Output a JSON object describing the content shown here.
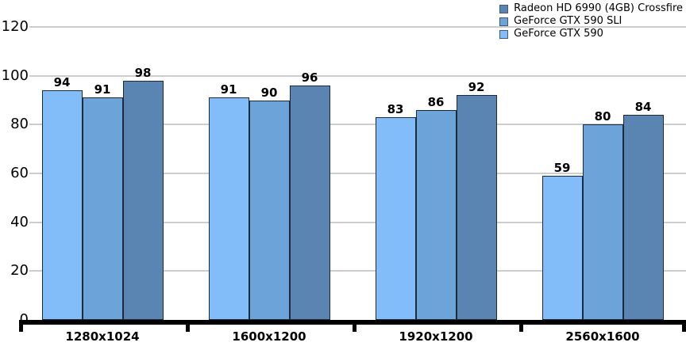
{
  "chart": {
    "legend": {
      "position": "top-right",
      "items": [
        {
          "label": "Radeon HD 6990 (4GB) Crossfire",
          "color": "#5A85B2"
        },
        {
          "label": "GeForce GTX 590 SLI",
          "color": "#6CA3D8"
        },
        {
          "label": "GeForce GTX 590",
          "color": "#83BDF9"
        }
      ]
    },
    "colors": {
      "grid": "#CDCDCD",
      "axis": "#000000",
      "bar_border": "#1C2B3A",
      "text": "#000000",
      "background": "#FFFFFF"
    }
  },
  "chart_data": {
    "type": "bar",
    "title": "",
    "xlabel": "",
    "ylabel": "",
    "categories": [
      "1280x1024",
      "1600x1200",
      "1920x1200",
      "2560x1600"
    ],
    "series": [
      {
        "name": "GeForce GTX 590",
        "color": "#83BDF9",
        "values": [
          94,
          91,
          83,
          59
        ]
      },
      {
        "name": "GeForce GTX 590 SLI",
        "color": "#6CA3D8",
        "values": [
          91,
          90,
          86,
          80
        ]
      },
      {
        "name": "Radeon HD 6990 (4GB) Crossfire",
        "color": "#5A85B2",
        "values": [
          98,
          96,
          92,
          84
        ]
      }
    ],
    "ylim": [
      0,
      120
    ],
    "yticks": [
      0,
      20,
      40,
      60,
      80,
      100,
      120
    ],
    "grid": true,
    "legend_position": "top-right",
    "value_labels": true
  }
}
